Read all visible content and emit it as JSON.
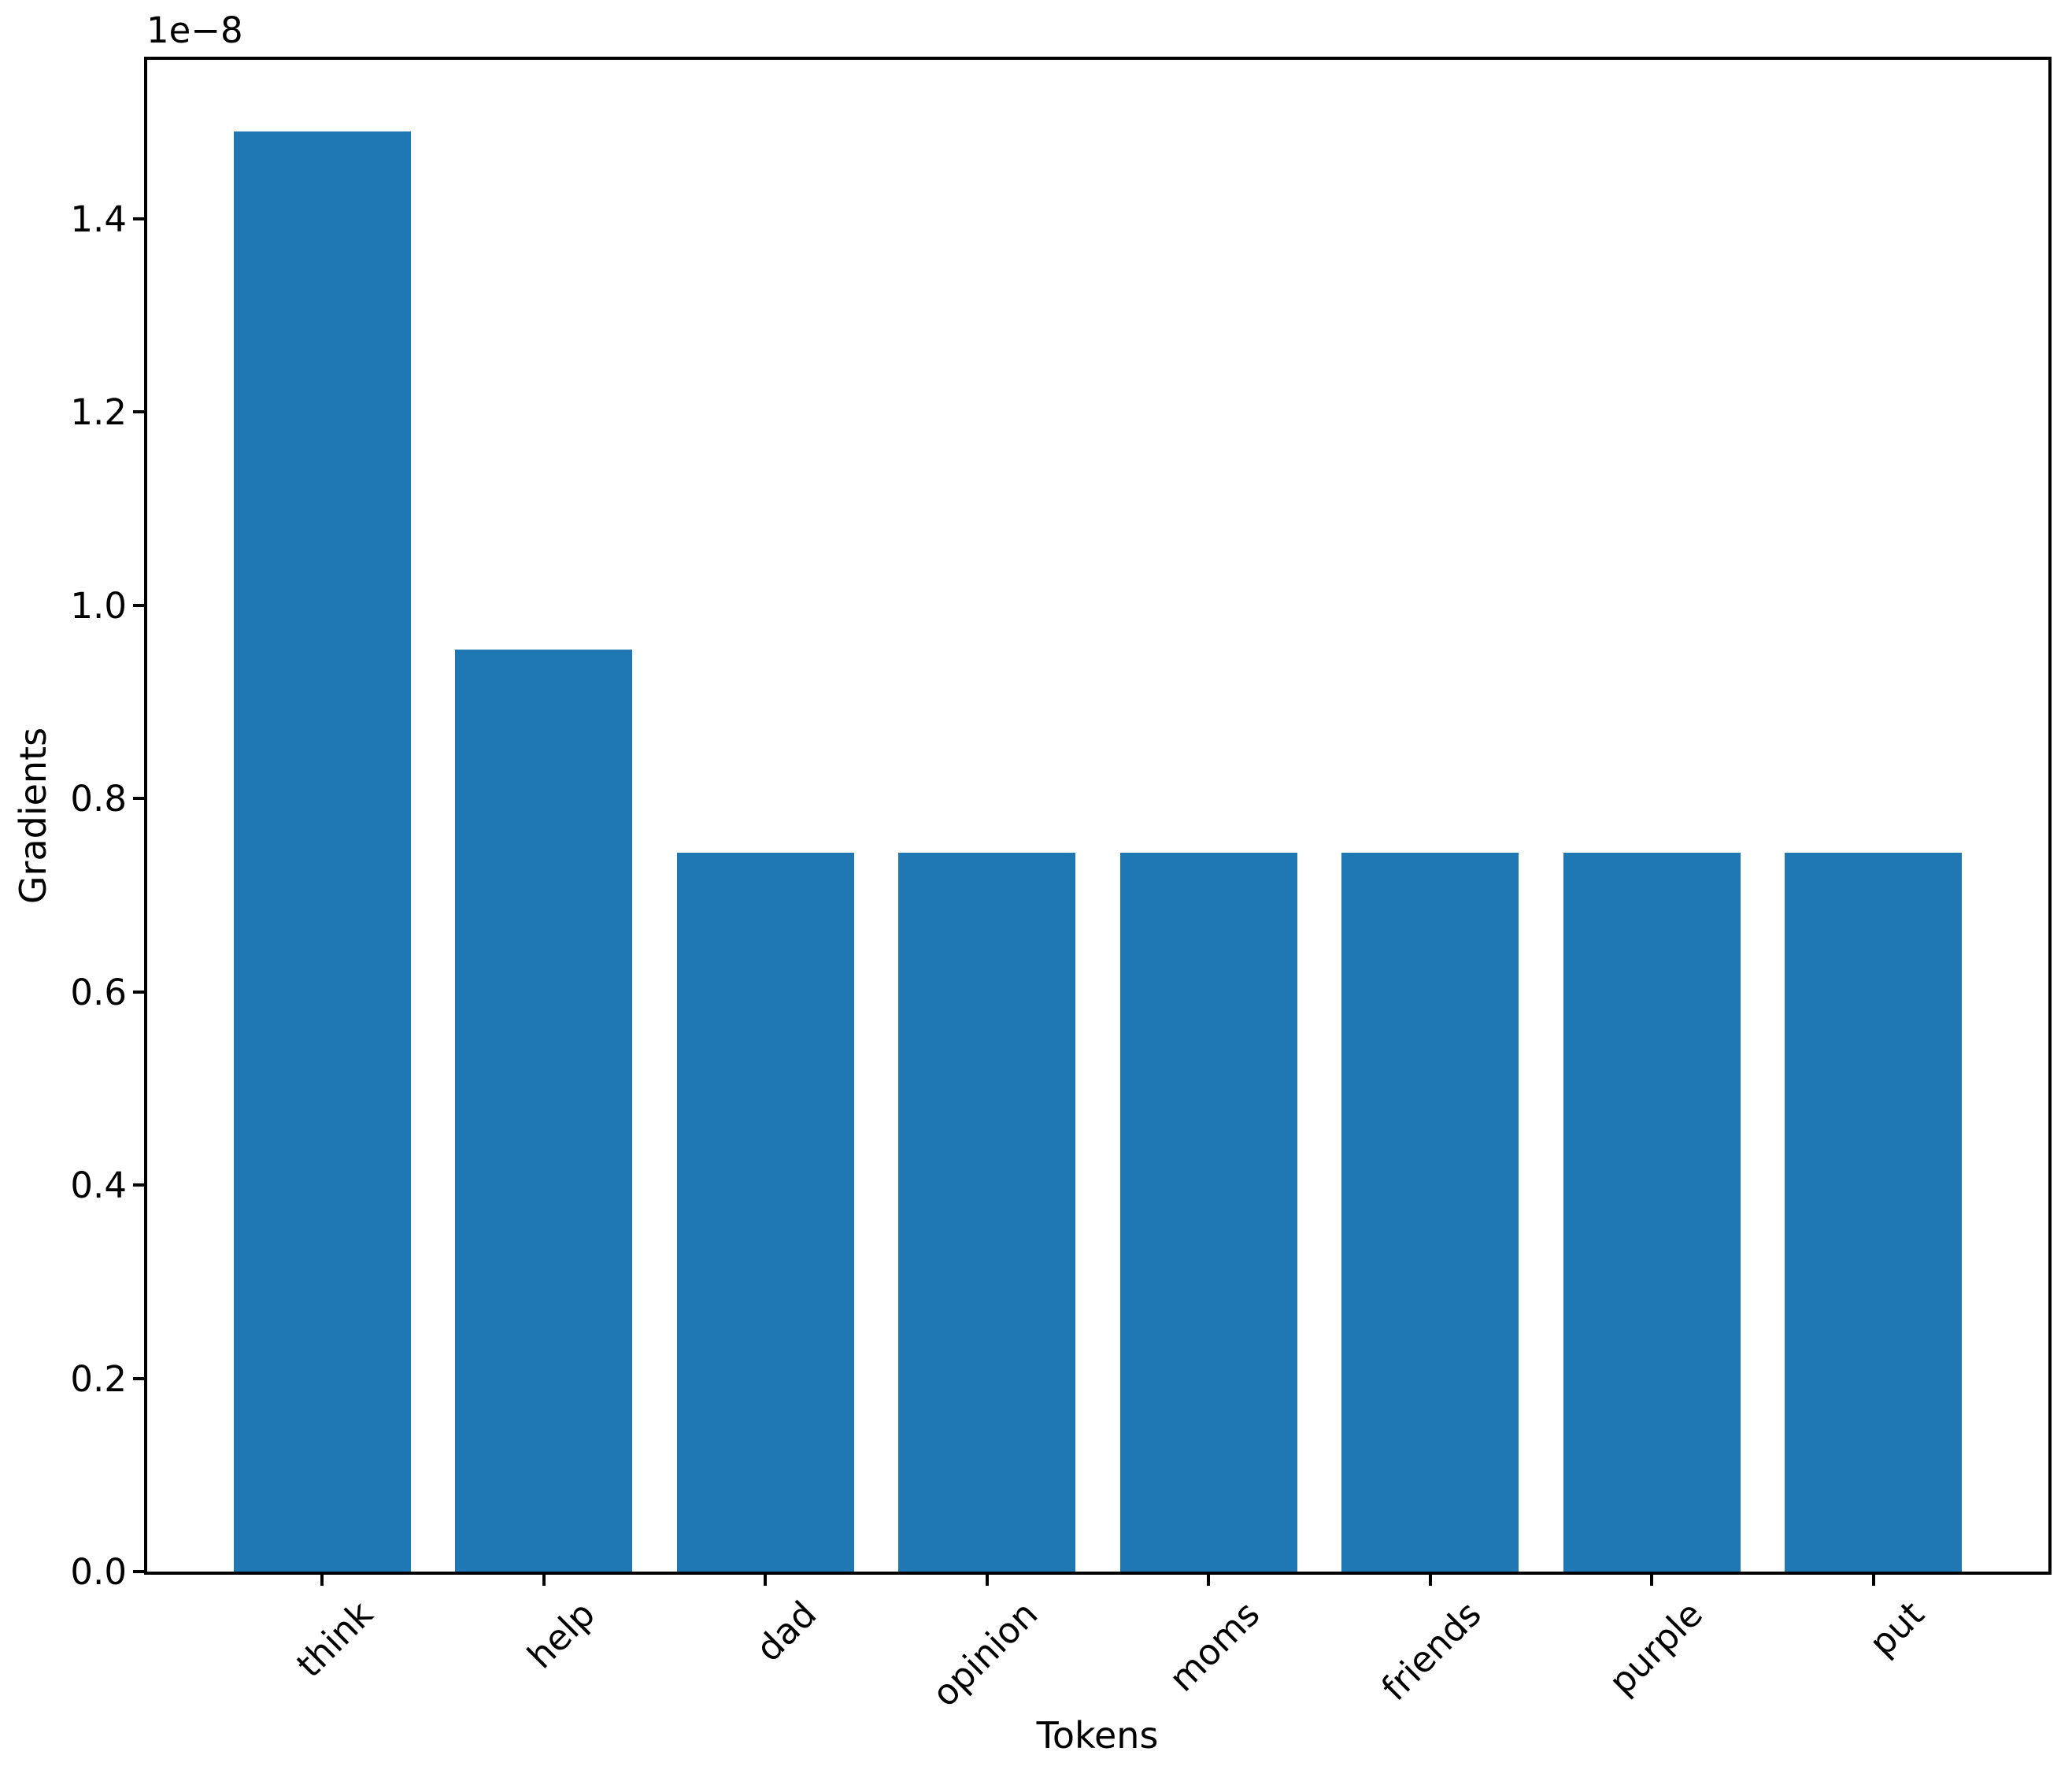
{
  "chart_data": {
    "type": "bar",
    "title": "",
    "xlabel": "Tokens",
    "ylabel": "Gradients",
    "offset_text": "1e−8",
    "categories": [
      "think",
      "help",
      "dad",
      "opinion",
      "moms",
      "friends",
      "purple",
      "put"
    ],
    "values": [
      1.49e-08,
      9.54e-09,
      7.44e-09,
      7.44e-09,
      7.44e-09,
      7.44e-09,
      7.44e-09,
      7.44e-09
    ],
    "bar_color": "#1f77b4",
    "ylim": [
      0,
      1.5645e-08
    ],
    "yticks": [
      0,
      2e-09,
      4e-09,
      6e-09,
      8e-09,
      1e-08,
      1.2e-08,
      1.4e-08
    ],
    "ytick_labels": [
      "0.0",
      "0.2",
      "0.4",
      "0.6",
      "0.8",
      "1.0",
      "1.2",
      "1.4"
    ],
    "x_tick_rotation": 45,
    "bar_width_fraction": 0.8,
    "grid": false,
    "legend": null
  }
}
